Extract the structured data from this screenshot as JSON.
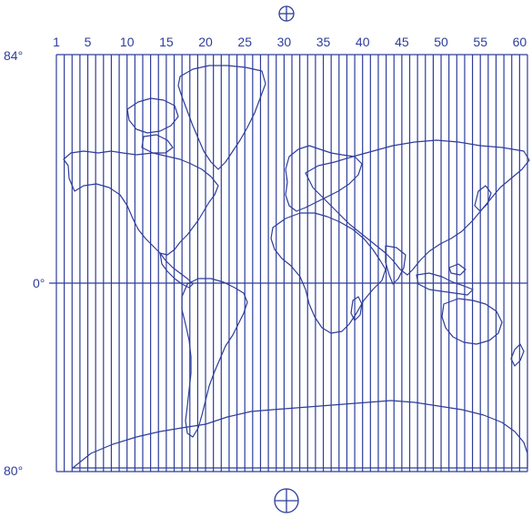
{
  "map": {
    "projection": "Mercator",
    "line_color": "#2e3d9b",
    "zone_count": 60,
    "zone_labels": [
      "1",
      "5",
      "10",
      "15",
      "20",
      "25",
      "30",
      "35",
      "40",
      "45",
      "50",
      "55",
      "60"
    ],
    "latitude_labels": {
      "top": "84°",
      "equator": "0°",
      "bottom": "80°"
    },
    "symbols": {
      "north": "circle-cross-icon",
      "south": "circle-quartered-icon"
    }
  }
}
